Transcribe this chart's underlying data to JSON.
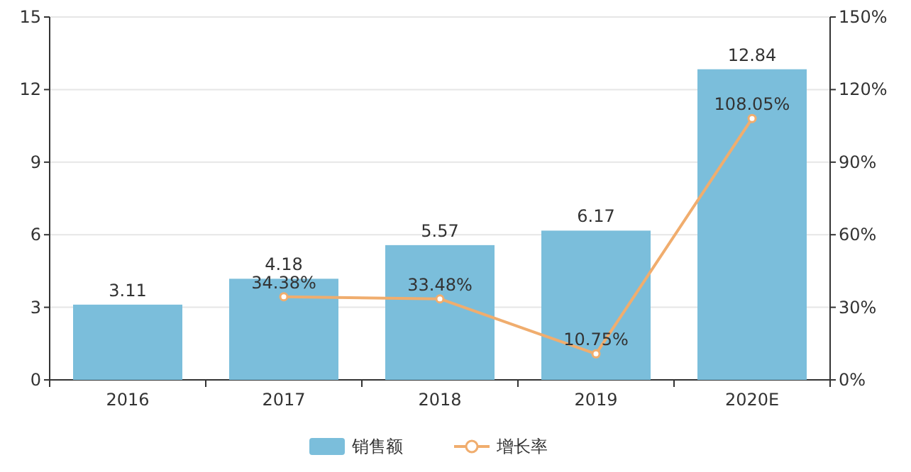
{
  "chart_data": {
    "type": "bar",
    "categories": [
      "2016",
      "2017",
      "2018",
      "2019",
      "2020E"
    ],
    "series": [
      {
        "name": "销售额",
        "color": "#7bbedb",
        "values": [
          3.11,
          4.18,
          5.57,
          6.17,
          12.84
        ]
      },
      {
        "name": "增长率",
        "type": "line",
        "axis": "y2",
        "color": "#f0ad6e",
        "values": [
          null,
          34.38,
          33.48,
          10.75,
          108.05
        ],
        "value_labels": [
          null,
          "34.38%",
          "33.48%",
          "10.75%",
          "108.05%"
        ]
      }
    ],
    "ylim": [
      0,
      15
    ],
    "yticks": [
      0,
      3,
      6,
      9,
      12,
      15
    ],
    "y2lim": [
      0,
      150
    ],
    "y2ticks": [
      {
        "value": 0,
        "label": "0%"
      },
      {
        "value": 30,
        "label": "30%"
      },
      {
        "value": 60,
        "label": "60%"
      },
      {
        "value": 90,
        "label": "90%"
      },
      {
        "value": 120,
        "label": "120%"
      },
      {
        "value": 150,
        "label": "150%"
      }
    ],
    "grid": "y",
    "legend": "bottom",
    "data_labels": true,
    "marker": "circle",
    "line_style": "solid"
  }
}
